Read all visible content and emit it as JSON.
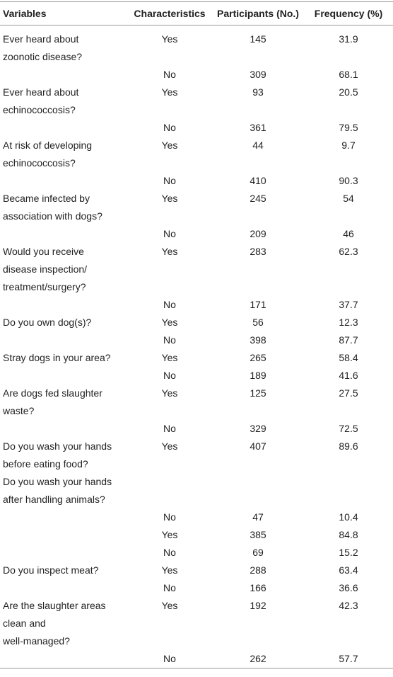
{
  "table": {
    "header": [
      "Variables",
      "Characteristics",
      "Participants (No.)",
      "Frequency (%)"
    ],
    "rows": [
      {
        "variable": [
          "Ever heard about",
          "zoonotic disease?"
        ],
        "characteristic": "Yes",
        "participants": "145",
        "frequency": "31.9"
      },
      {
        "characteristic": "No",
        "participants": "309",
        "frequency": "68.1"
      },
      {
        "variable": [
          "Ever heard about",
          "echinococcosis?"
        ],
        "characteristic": "Yes",
        "participants": "93",
        "frequency": "20.5"
      },
      {
        "characteristic": "No",
        "participants": "361",
        "frequency": "79.5"
      },
      {
        "variable": [
          "At risk of developing",
          "echinococcosis?"
        ],
        "characteristic": "Yes",
        "participants": "44",
        "frequency": "9.7"
      },
      {
        "characteristic": "No",
        "participants": "410",
        "frequency": "90.3"
      },
      {
        "variable": [
          "Became infected by",
          "association with dogs?"
        ],
        "characteristic": "Yes",
        "participants": "245",
        "frequency": "54"
      },
      {
        "characteristic": "No",
        "participants": "209",
        "frequency": "46"
      },
      {
        "variable": [
          "Would you receive",
          "disease inspection/",
          "treatment/surgery?"
        ],
        "characteristic": "Yes",
        "participants": "283",
        "frequency": "62.3"
      },
      {
        "characteristic": "No",
        "participants": "171",
        "frequency": "37.7"
      },
      {
        "variable": [
          "Do you own dog(s)?"
        ],
        "characteristic": "Yes",
        "participants": "56",
        "frequency": "12.3"
      },
      {
        "characteristic": "No",
        "participants": "398",
        "frequency": "87.7"
      },
      {
        "variable": [
          "Stray dogs in your area?"
        ],
        "characteristic": "Yes",
        "participants": "265",
        "frequency": "58.4"
      },
      {
        "characteristic": "No",
        "participants": "189",
        "frequency": "41.6"
      },
      {
        "variable": [
          "Are dogs fed slaughter",
          "waste?"
        ],
        "characteristic": "Yes",
        "participants": "125",
        "frequency": "27.5"
      },
      {
        "characteristic": "No",
        "participants": "329",
        "frequency": "72.5"
      },
      {
        "variable": [
          "Do you wash your hands",
          "before eating food?",
          "Do you wash your hands",
          "after handling animals?"
        ],
        "characteristic": "Yes",
        "participants": "407",
        "frequency": "89.6"
      },
      {
        "characteristic": "No",
        "participants": "47",
        "frequency": "10.4"
      },
      {
        "characteristic": "Yes",
        "participants": "385",
        "frequency": "84.8"
      },
      {
        "characteristic": "No",
        "participants": "69",
        "frequency": "15.2"
      },
      {
        "variable": [
          "Do you inspect meat?"
        ],
        "characteristic": "Yes",
        "participants": "288",
        "frequency": "63.4"
      },
      {
        "characteristic": "No",
        "participants": "166",
        "frequency": "36.6"
      },
      {
        "variable": [
          "Are the slaughter areas",
          "clean and",
          "well-managed?"
        ],
        "characteristic": "Yes",
        "participants": "192",
        "frequency": "42.3"
      },
      {
        "characteristic": "No",
        "participants": "262",
        "frequency": "57.7"
      }
    ]
  }
}
